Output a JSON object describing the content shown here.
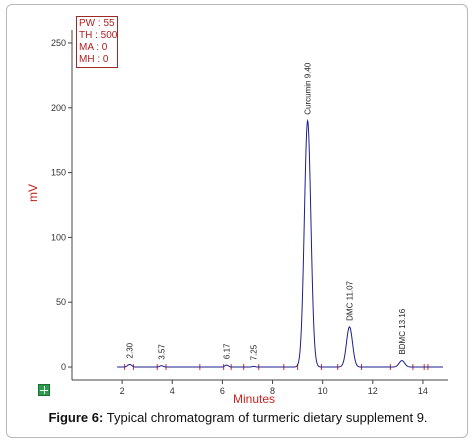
{
  "info_box": [
    "PW : 55",
    "TH : 500",
    "MA : 0",
    "MH : 0"
  ],
  "caption": {
    "label": "Figure 6:",
    "text": "Typical chromatogram of turmeric dietary supplement 9."
  },
  "colors": {
    "trace": "#1b1f8c",
    "axis_label": "#c8221e",
    "marker": "#d0312d",
    "info_border": "#9a2a2a"
  },
  "icon": "expand-icon",
  "chart_data": {
    "type": "line",
    "title": "",
    "xlabel": "Minutes",
    "ylabel": "mV",
    "xlim": [
      0,
      15
    ],
    "ylim": [
      -10,
      260
    ],
    "x_ticks": [
      2,
      4,
      6,
      8,
      10,
      12,
      14
    ],
    "y_ticks": [
      0,
      50,
      100,
      150,
      200,
      250
    ],
    "grid": false,
    "peaks": [
      {
        "label": "2.30",
        "x": 2.3,
        "y": 2
      },
      {
        "label": "3.57",
        "x": 3.57,
        "y": 1
      },
      {
        "label": "6.17",
        "x": 6.17,
        "y": 1.5
      },
      {
        "label": "7.25",
        "x": 7.25,
        "y": 0.5
      },
      {
        "label": "Curcumin 9.40",
        "x": 9.4,
        "y": 190
      },
      {
        "label": "DMC 11.07",
        "x": 11.07,
        "y": 31
      },
      {
        "label": "BDMC 13.16",
        "x": 13.16,
        "y": 5
      }
    ],
    "baseline_markers_x": [
      2.1,
      2.45,
      3.4,
      3.75,
      5.1,
      6.05,
      6.35,
      6.85,
      7.45,
      8.45,
      9.0,
      9.95,
      10.6,
      11.55,
      12.7,
      13.6,
      14.05,
      14.2
    ]
  }
}
